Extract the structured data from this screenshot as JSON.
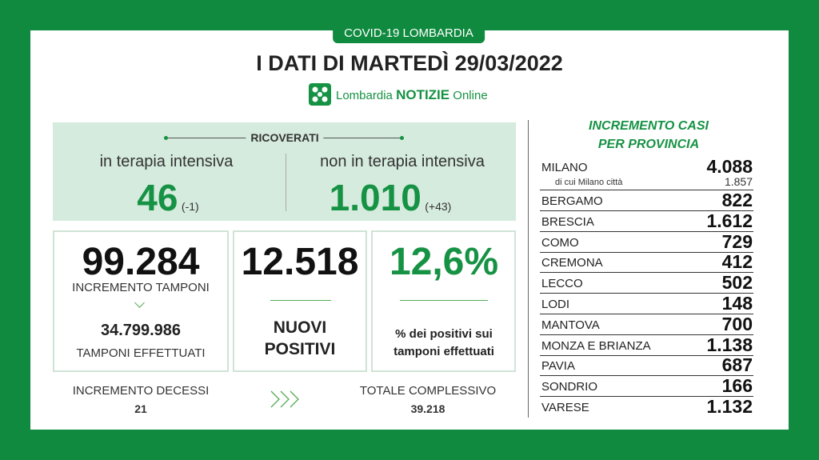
{
  "header": {
    "tag": "COVID-19 LOMBARDIA",
    "title": "I DATI DI MARTEDÌ 29/03/2022",
    "logo_brand": "Lombardia",
    "logo_name": "NOTIZIE",
    "logo_suffix": "Online"
  },
  "ricoverati": {
    "label": "RICOVERATI",
    "intensive": {
      "label": "in terapia intensiva",
      "value": "46",
      "delta": "(-1)"
    },
    "non_intensive": {
      "label": "non in terapia intensiva",
      "value": "1.010",
      "delta": "(+43)"
    }
  },
  "tamponi": {
    "value": "99.284",
    "label": "INCREMENTO TAMPONI",
    "total": "34.799.986",
    "total_label": "TAMPONI EFFETTUATI"
  },
  "positivi": {
    "value": "12.518",
    "label_1": "NUOVI",
    "label_2": "POSITIVI"
  },
  "percentuale": {
    "value": "12,6%",
    "label_1": "% dei positivi sui",
    "label_2": "tamponi effettuati"
  },
  "decessi": {
    "label": "INCREMENTO DECESSI",
    "value": "21",
    "total_label": "TOTALE COMPLESSIVO",
    "total": "39.218"
  },
  "province": {
    "title_1": "INCREMENTO CASI",
    "title_2": "PER PROVINCIA",
    "milano_city": {
      "label": "di cui Milano città",
      "value": "1.857"
    },
    "rows": [
      [
        "MILANO",
        "4.088"
      ],
      [
        "BERGAMO",
        "822"
      ],
      [
        "BRESCIA",
        "1.612"
      ],
      [
        "COMO",
        "729"
      ],
      [
        "CREMONA",
        "412"
      ],
      [
        "LECCO",
        "502"
      ],
      [
        "LODI",
        "148"
      ],
      [
        "MANTOVA",
        "700"
      ],
      [
        "MONZA E BRIANZA",
        "1.138"
      ],
      [
        "PAVIA",
        "687"
      ],
      [
        "SONDRIO",
        "166"
      ],
      [
        "VARESE",
        "1.132"
      ]
    ]
  }
}
